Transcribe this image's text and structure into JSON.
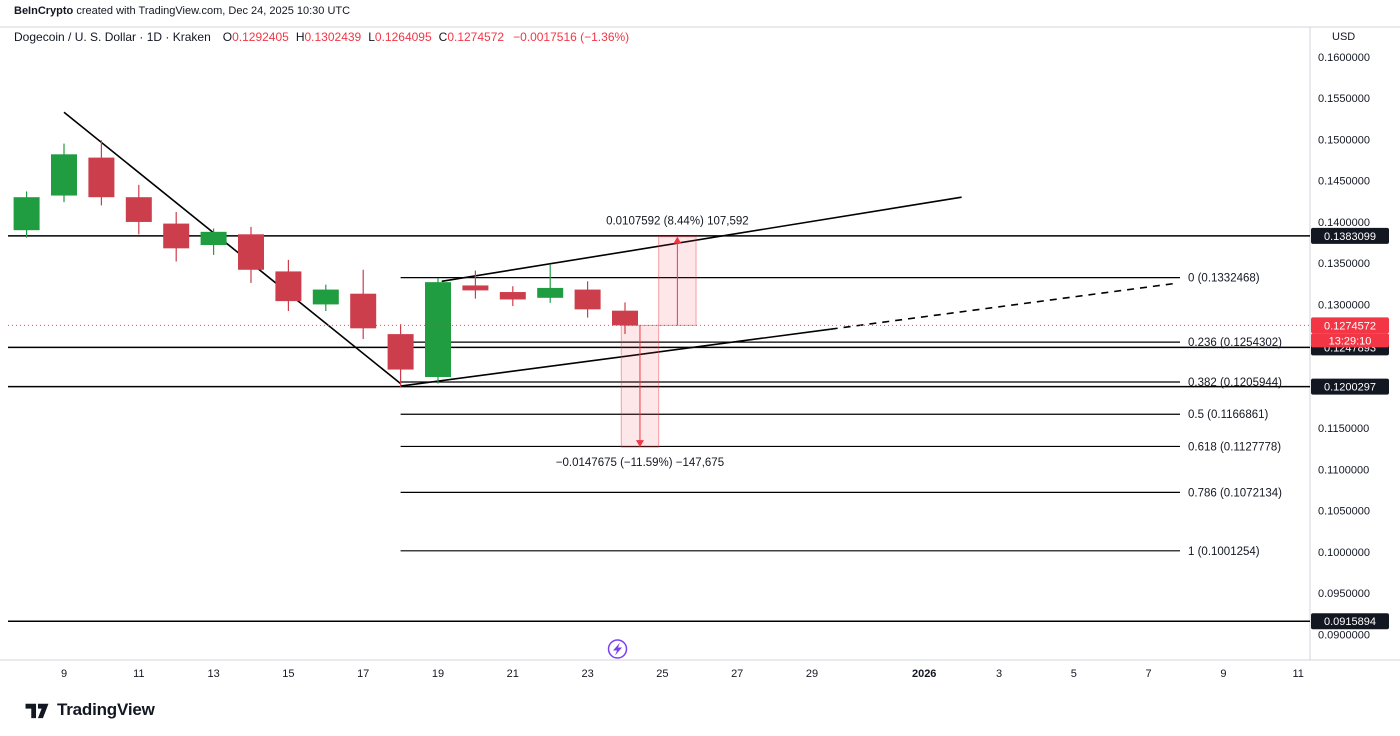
{
  "attribution": {
    "brand": "BeInCrypto",
    "rest": " created with TradingView.com, Dec 24, 2025 10:30 UTC"
  },
  "legend": {
    "symbol": "Dogecoin / U. S. Dollar · 1D · Kraken",
    "ohlc": [
      {
        "k": "O",
        "v": "0.1292405"
      },
      {
        "k": "H",
        "v": "0.1302439"
      },
      {
        "k": "L",
        "v": "0.1264095"
      },
      {
        "k": "C",
        "v": "0.1274572"
      }
    ],
    "change": "−0.0017516 (−1.36%)"
  },
  "price_axis": {
    "currency": "USD",
    "ticks": [
      {
        "label": "0.1600000",
        "price": 0.16
      },
      {
        "label": "0.1550000",
        "price": 0.155
      },
      {
        "label": "0.1500000",
        "price": 0.15
      },
      {
        "label": "0.1450000",
        "price": 0.145
      },
      {
        "label": "0.1400000",
        "price": 0.14
      },
      {
        "label": "0.1350000",
        "price": 0.135
      },
      {
        "label": "0.1300000",
        "price": 0.13
      },
      {
        "label": "0.1150000",
        "price": 0.115
      },
      {
        "label": "0.1100000",
        "price": 0.11
      },
      {
        "label": "0.1050000",
        "price": 0.105
      },
      {
        "label": "0.1000000",
        "price": 0.1
      },
      {
        "label": "0.0950000",
        "price": 0.095
      },
      {
        "label": "0.0900000",
        "price": 0.09
      }
    ],
    "badges": [
      {
        "label": "0.1383099",
        "price": 0.1383099
      },
      {
        "label": "0.1247893",
        "price": 0.1247893
      },
      {
        "label": "0.1200297",
        "price": 0.1200297
      },
      {
        "label": "0.0915894",
        "price": 0.0915894
      }
    ],
    "current": {
      "label": "0.1274572",
      "price": 0.1274572,
      "countdown": "13:29:10"
    }
  },
  "time_axis": {
    "ticks": [
      {
        "label": "9",
        "day": 9
      },
      {
        "label": "11",
        "day": 11
      },
      {
        "label": "13",
        "day": 13
      },
      {
        "label": "15",
        "day": 15
      },
      {
        "label": "17",
        "day": 17
      },
      {
        "label": "19",
        "day": 19
      },
      {
        "label": "21",
        "day": 21
      },
      {
        "label": "23",
        "day": 23
      },
      {
        "label": "25",
        "day": 25
      },
      {
        "label": "27",
        "day": 27
      },
      {
        "label": "29",
        "day": 29
      },
      {
        "label": "2026",
        "day": 32,
        "bold": true
      },
      {
        "label": "3",
        "day": 34
      },
      {
        "label": "5",
        "day": 36
      },
      {
        "label": "7",
        "day": 38
      },
      {
        "label": "9",
        "day": 40
      },
      {
        "label": "11",
        "day": 42
      }
    ]
  },
  "chart_data": {
    "type": "candlestick",
    "title": "Dogecoin / U.S. Dollar, 1D, Kraken",
    "x_unit": "calendar day (Dec 2025 – Jan 2026)",
    "price_range": [
      0.09,
      0.16
    ],
    "candles": [
      {
        "day": 8,
        "o": 0.139,
        "h": 0.1437,
        "l": 0.1381,
        "c": 0.143
      },
      {
        "day": 9,
        "o": 0.1432,
        "h": 0.1495,
        "l": 0.1424,
        "c": 0.1482
      },
      {
        "day": 10,
        "o": 0.1478,
        "h": 0.1499,
        "l": 0.142,
        "c": 0.143
      },
      {
        "day": 11,
        "o": 0.143,
        "h": 0.1445,
        "l": 0.1385,
        "c": 0.14
      },
      {
        "day": 12,
        "o": 0.1398,
        "h": 0.1412,
        "l": 0.1352,
        "c": 0.1368
      },
      {
        "day": 13,
        "o": 0.1372,
        "h": 0.1392,
        "l": 0.136,
        "c": 0.1388
      },
      {
        "day": 14,
        "o": 0.1385,
        "h": 0.1394,
        "l": 0.1326,
        "c": 0.1342
      },
      {
        "day": 15,
        "o": 0.134,
        "h": 0.1354,
        "l": 0.1292,
        "c": 0.1304
      },
      {
        "day": 16,
        "o": 0.13,
        "h": 0.1324,
        "l": 0.1292,
        "c": 0.1318
      },
      {
        "day": 17,
        "o": 0.1313,
        "h": 0.1342,
        "l": 0.1258,
        "c": 0.1271
      },
      {
        "day": 18,
        "o": 0.1264,
        "h": 0.1276,
        "l": 0.12,
        "c": 0.1221
      },
      {
        "day": 19,
        "o": 0.1212,
        "h": 0.1332,
        "l": 0.1204,
        "c": 0.1327
      },
      {
        "day": 20,
        "o": 0.1323,
        "h": 0.1341,
        "l": 0.1307,
        "c": 0.1317
      },
      {
        "day": 21,
        "o": 0.1315,
        "h": 0.1322,
        "l": 0.1298,
        "c": 0.1306
      },
      {
        "day": 22,
        "o": 0.1308,
        "h": 0.1348,
        "l": 0.1302,
        "c": 0.132
      },
      {
        "day": 23,
        "o": 0.1318,
        "h": 0.1328,
        "l": 0.1284,
        "c": 0.1294
      },
      {
        "day": 24,
        "o": 0.1292405,
        "h": 0.1302439,
        "l": 0.1264095,
        "c": 0.1274572
      }
    ],
    "fib_levels": [
      {
        "ratio": "0",
        "price": 0.1332468,
        "label": "0 (0.1332468)"
      },
      {
        "ratio": "0.236",
        "price": 0.1254302,
        "label": "0.236 (0.1254302)"
      },
      {
        "ratio": "0.382",
        "price": 0.1205944,
        "label": "0.382 (0.1205944)"
      },
      {
        "ratio": "0.5",
        "price": 0.1166861,
        "label": "0.5 (0.1166861)"
      },
      {
        "ratio": "0.618",
        "price": 0.1127778,
        "label": "0.618 (0.1127778)"
      },
      {
        "ratio": "0.786",
        "price": 0.1072134,
        "label": "0.786 (0.1072134)"
      },
      {
        "ratio": "1",
        "price": 0.1001254,
        "label": "1 (0.1001254)"
      }
    ],
    "horizontal_lines": [
      0.1383099,
      0.1247893,
      0.1200297,
      0.0915894
    ],
    "trend_lines": [
      {
        "d1": 9,
        "p1": 0.1533,
        "d2": 18,
        "p2": 0.1204,
        "dashed": false
      },
      {
        "d1": 19.1,
        "p1": 0.1328,
        "d2": 33,
        "p2": 0.143,
        "dashed": false
      },
      {
        "d1": 18,
        "p1": 0.1201,
        "d2": 29.5,
        "p2": 0.127,
        "dashed": false
      },
      {
        "d1": 29.5,
        "p1": 0.127,
        "d2": 38.8,
        "p2": 0.1326,
        "dashed": true
      }
    ],
    "projections": [
      {
        "dir": "up",
        "d1": 24.9,
        "d2": 25.9,
        "from": 0.1274572,
        "to": 0.1382164,
        "label": "0.0107592 (8.44%) 107,592"
      },
      {
        "dir": "down",
        "d1": 23.9,
        "d2": 24.9,
        "from": 0.1274572,
        "to": 0.1126897,
        "label": "−0.0147675 (−11.59%) −147,675"
      }
    ],
    "marker": {
      "type": "lightning",
      "day": 23.8
    },
    "colors": {
      "up": "#1f9d40",
      "down": "#cc3e4c",
      "accent": "#f23645",
      "line": "#000000",
      "text": "#131722",
      "separator": "#d1d4dc",
      "purple": "#7b3ff2",
      "proj_fill": "rgba(242,54,69,0.12)",
      "proj_border": "rgba(242,54,69,0.45)"
    }
  },
  "footer": {
    "logo_text": "TradingView"
  }
}
